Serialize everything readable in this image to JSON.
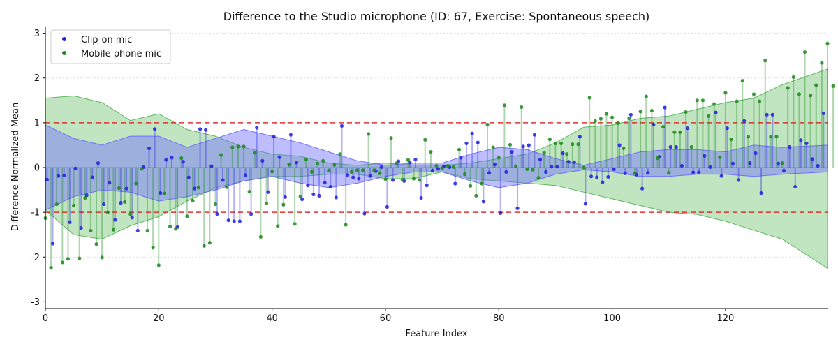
{
  "chart_data": {
    "type": "scatter",
    "title": "Difference to the Studio microphone (ID: 67, Exercise: Spontaneous speech)",
    "xlabel": "Feature Index",
    "ylabel": "Difference Normalized Mean",
    "xlim": [
      0,
      138
    ],
    "ylim": [
      -3.15,
      3.15
    ],
    "xticks": [
      0,
      20,
      40,
      60,
      80,
      100,
      120
    ],
    "yticks": [
      -3,
      -2,
      -1,
      0,
      1,
      2,
      3
    ],
    "grid": {
      "y": true,
      "x": false
    },
    "legend_position": "upper-left",
    "reference_lines": [
      1,
      -1
    ],
    "colors": {
      "clip": "#1f1fe0",
      "mobile": "#1a8a1a",
      "clip_band": "#6f6fff",
      "mobile_band": "#5cb85c",
      "reference": "#e03030"
    },
    "series": [
      {
        "name": "Clip-on mic",
        "offset": 0.3,
        "values": [
          -0.27,
          -1.7,
          -0.19,
          -0.18,
          -1.22,
          -0.02,
          -1.35,
          -0.62,
          -0.22,
          0.1,
          -0.82,
          -0.34,
          -1.17,
          -0.79,
          -0.47,
          -1.12,
          -1.41,
          0.01,
          0.43,
          0.86,
          -0.57,
          0.17,
          0.22,
          -1.33,
          0.13,
          -0.22,
          -0.47,
          0.86,
          0.84,
          0.03,
          -1.04,
          -0.28,
          -1.18,
          -1.2,
          -1.2,
          -0.17,
          -1.04,
          0.89,
          0.15,
          -0.55,
          0.69,
          0.23,
          -0.66,
          0.73,
          0.11,
          -0.71,
          -0.4,
          -0.6,
          -0.63,
          -0.34,
          -0.43,
          -0.67,
          0.93,
          -0.17,
          -0.22,
          -0.25,
          -1.03,
          -0.19,
          -0.08,
          0.01,
          -0.88,
          -0.28,
          0.14,
          -0.3,
          0.11,
          0.18,
          -0.68,
          -0.4,
          -0.07,
          -0.03,
          0.03,
          0.01,
          -0.36,
          0.22,
          0.54,
          0.76,
          0.56,
          -0.76,
          -0.12,
          0.07,
          -1.02,
          -0.1,
          0.35,
          -0.91,
          0.47,
          0.5,
          0.73,
          0.18,
          -0.1,
          0.02,
          0.02,
          0.32,
          0.13,
          0.12,
          0.69,
          -0.81,
          -0.2,
          -0.22,
          -0.33,
          -0.21,
          -0.04,
          0.5,
          -0.13,
          1.18,
          -0.16,
          -0.47,
          -0.12,
          0.96,
          0.24,
          1.34,
          0.46,
          0.46,
          0.04,
          0.88,
          -0.11,
          -0.11,
          0.26,
          0.01,
          1.23,
          -0.19,
          0.88,
          0.09,
          -0.28,
          1.04,
          0.1,
          0.32,
          -0.57,
          1.18,
          1.18,
          0.09,
          -0.07,
          0.46,
          -0.43,
          0.61,
          0.54,
          0.19,
          0.04,
          1.21
        ]
      },
      {
        "name": "Mobile phone mic",
        "offset": 0.0,
        "values": [
          -1.13,
          -2.24,
          -0.82,
          -2.12,
          -2.04,
          -0.85,
          -2.03,
          -0.68,
          -1.41,
          -1.71,
          -2.01,
          -1.0,
          -1.39,
          -0.46,
          -0.77,
          -1.04,
          -0.36,
          -0.03,
          -1.41,
          -1.79,
          -2.18,
          -0.58,
          -1.32,
          -1.37,
          0.21,
          -1.09,
          -0.74,
          -0.45,
          -1.75,
          -1.68,
          -0.82,
          0.28,
          -0.44,
          0.45,
          0.47,
          0.47,
          -0.54,
          0.33,
          -1.55,
          -0.8,
          -0.09,
          -1.31,
          -0.83,
          0.07,
          -1.26,
          -0.65,
          0.18,
          -0.1,
          0.09,
          0.15,
          -0.07,
          0.06,
          0.3,
          -1.28,
          -0.1,
          -0.06,
          -0.06,
          0.75,
          -0.06,
          -0.13,
          -0.26,
          0.66,
          0.1,
          -0.27,
          0.17,
          -0.25,
          -0.28,
          0.62,
          0.35,
          0.04,
          -0.02,
          0.04,
          0.01,
          0.4,
          -0.15,
          -0.41,
          -0.63,
          -0.36,
          0.96,
          0.45,
          0.22,
          1.39,
          0.51,
          0.03,
          1.35,
          -0.04,
          -0.05,
          -0.23,
          0.33,
          0.63,
          0.54,
          0.54,
          0.3,
          0.52,
          0.52,
          0.0,
          1.56,
          1.04,
          1.09,
          1.2,
          1.12,
          0.99,
          0.43,
          1.1,
          -0.13,
          1.25,
          1.59,
          1.27,
          0.21,
          0.91,
          -0.12,
          0.79,
          0.79,
          1.24,
          0.46,
          1.5,
          1.5,
          1.15,
          1.42,
          0.23,
          1.67,
          0.63,
          1.48,
          1.94,
          0.69,
          1.64,
          1.48,
          2.39,
          0.69,
          0.69,
          0.1,
          1.78,
          2.02,
          1.64,
          2.58,
          1.61,
          1.84,
          2.34,
          2.77,
          1.82
        ]
      }
    ],
    "band_profiles": {
      "clip": {
        "x": [
          0,
          5,
          10,
          15,
          20,
          25,
          30,
          35,
          40,
          45,
          50,
          55,
          60,
          65,
          70,
          75,
          80,
          85,
          90,
          95,
          100,
          105,
          110,
          115,
          120,
          125,
          130,
          138
        ],
        "lower": [
          -0.95,
          -0.65,
          -0.5,
          -0.55,
          -0.75,
          -0.65,
          -0.5,
          -0.3,
          -0.2,
          -0.35,
          -0.45,
          -0.35,
          -0.2,
          -0.1,
          -0.1,
          -0.3,
          -0.45,
          -0.35,
          -0.15,
          -0.05,
          -0.1,
          -0.2,
          -0.2,
          -0.15,
          -0.15,
          -0.2,
          -0.15,
          -0.1
        ],
        "upper": [
          0.95,
          0.65,
          0.5,
          0.7,
          0.7,
          0.45,
          0.65,
          0.85,
          0.7,
          0.55,
          0.35,
          0.15,
          0.05,
          0.1,
          0.1,
          0.3,
          0.45,
          0.4,
          0.2,
          0.05,
          0.2,
          0.35,
          0.4,
          0.4,
          0.35,
          0.5,
          0.45,
          0.5
        ]
      },
      "mobile": {
        "x": [
          0,
          5,
          10,
          15,
          20,
          25,
          30,
          35,
          40,
          45,
          50,
          55,
          60,
          65,
          70,
          75,
          80,
          85,
          90,
          95,
          100,
          105,
          110,
          115,
          120,
          125,
          130,
          138
        ],
        "lower": [
          -0.95,
          -1.5,
          -1.6,
          -1.3,
          -1.1,
          -0.75,
          -0.45,
          -0.3,
          -0.2,
          -0.2,
          -0.15,
          -0.15,
          -0.25,
          -0.25,
          -0.1,
          -0.25,
          -0.3,
          -0.35,
          -0.4,
          -0.55,
          -0.7,
          -0.85,
          -1.0,
          -1.05,
          -1.2,
          -1.4,
          -1.6,
          -2.25
        ],
        "upper": [
          1.55,
          1.6,
          1.45,
          1.05,
          1.2,
          0.85,
          0.7,
          0.45,
          0.3,
          0.25,
          0.1,
          0.05,
          0.1,
          0.05,
          0.05,
          0.1,
          0.2,
          0.3,
          0.55,
          0.9,
          0.95,
          1.1,
          1.15,
          1.3,
          1.45,
          1.55,
          1.85,
          2.2
        ]
      }
    }
  }
}
